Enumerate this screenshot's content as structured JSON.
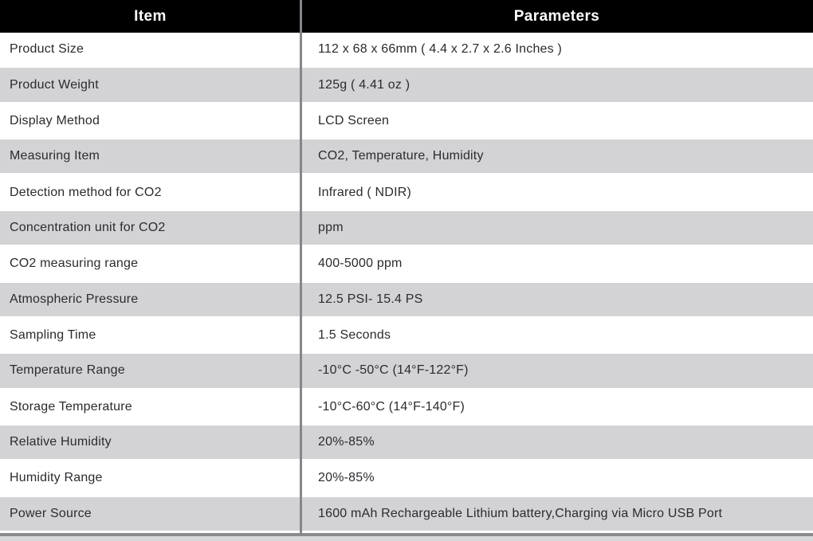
{
  "table": {
    "columns": [
      {
        "label": "Item"
      },
      {
        "label": "Parameters"
      }
    ],
    "rows": [
      {
        "item": "Product Size",
        "parameter": "112 x 68 x 66mm ( 4.4 x 2.7 x 2.6 Inches )"
      },
      {
        "item": "Product Weight",
        "parameter": "125g ( 4.41 oz )"
      },
      {
        "item": "Display Method",
        "parameter": "LCD Screen"
      },
      {
        "item": "Measuring Item",
        "parameter": "CO2, Temperature, Humidity"
      },
      {
        "item": "Detection method for CO2",
        "parameter": "Infrared ( NDIR)"
      },
      {
        "item": "Concentration unit for CO2",
        "parameter": "ppm"
      },
      {
        "item": "CO2 measuring range",
        "parameter": "400-5000 ppm"
      },
      {
        "item": "Atmospheric Pressure",
        "parameter": "12.5 PSI- 15.4 PS"
      },
      {
        "item": "Sampling Time",
        "parameter": "1.5 Seconds"
      },
      {
        "item": "Temperature Range",
        "parameter": "-10°C -50°C (14°F-122°F)"
      },
      {
        "item": "Storage Temperature",
        "parameter": "-10°C-60°C (14°F-140°F)"
      },
      {
        "item": "Relative Humidity",
        "parameter": "20%-85%"
      },
      {
        "item": "Humidity Range",
        "parameter": "20%-85%"
      },
      {
        "item": "Power Source",
        "parameter": "1600 mAh Rechargeable Lithium battery,Charging via Micro USB Port"
      }
    ],
    "colors": {
      "header_bg": "#000000",
      "header_text": "#ffffff",
      "row_bg": "#ffffff",
      "row_alt_bg": "#d3d3d5",
      "text": "#2b2b30",
      "divider": "#85868a",
      "bottom_line": "#8a8b8e",
      "bottom_strip": "#d8d9da"
    }
  }
}
